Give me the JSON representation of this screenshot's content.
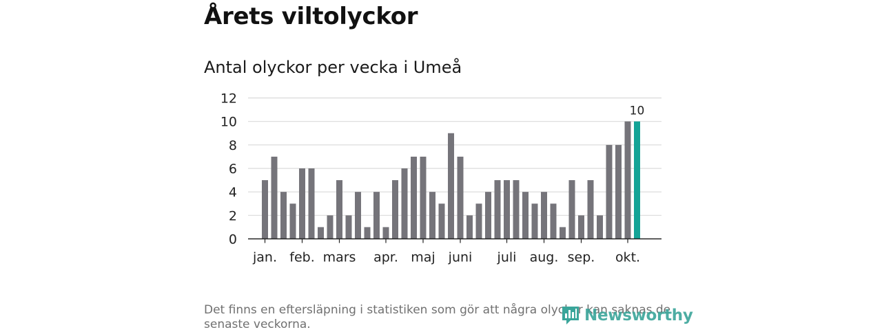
{
  "title": "Årets viltolyckor",
  "subtitle": "Antal olyckor per vecka i Umeå",
  "footnote": "Det finns en eftersläpning i statistiken som gör att några olyckor kan saknas de senaste veckorna.",
  "brand": {
    "name": "Newsworthy",
    "icon": "bar-chart-logo-icon",
    "color": "#3aa59a"
  },
  "chart_data": {
    "type": "bar",
    "title": "Antal olyckor per vecka i Umeå",
    "ylim": [
      0,
      12
    ],
    "yticks": [
      0,
      2,
      4,
      6,
      8,
      10,
      12
    ],
    "grid": true,
    "bar_color": "#75747a",
    "highlight_color": "#13a396",
    "highlight_index": 41,
    "highlight_label": "10",
    "values": [
      5,
      7,
      4,
      3,
      6,
      6,
      1,
      2,
      5,
      2,
      4,
      1,
      4,
      1,
      5,
      6,
      7,
      7,
      4,
      3,
      9,
      7,
      2,
      3,
      4,
      5,
      5,
      5,
      4,
      3,
      4,
      3,
      1,
      5,
      2,
      5,
      2,
      8,
      8,
      10,
      10
    ],
    "month_labels": [
      {
        "label": "jan.",
        "week": 1
      },
      {
        "label": "feb.",
        "week": 5
      },
      {
        "label": "mars",
        "week": 9
      },
      {
        "label": "apr.",
        "week": 14
      },
      {
        "label": "maj",
        "week": 18
      },
      {
        "label": "juni",
        "week": 22
      },
      {
        "label": "juli",
        "week": 27
      },
      {
        "label": "aug.",
        "week": 31
      },
      {
        "label": "sep.",
        "week": 35
      },
      {
        "label": "okt.",
        "week": 40
      }
    ]
  }
}
